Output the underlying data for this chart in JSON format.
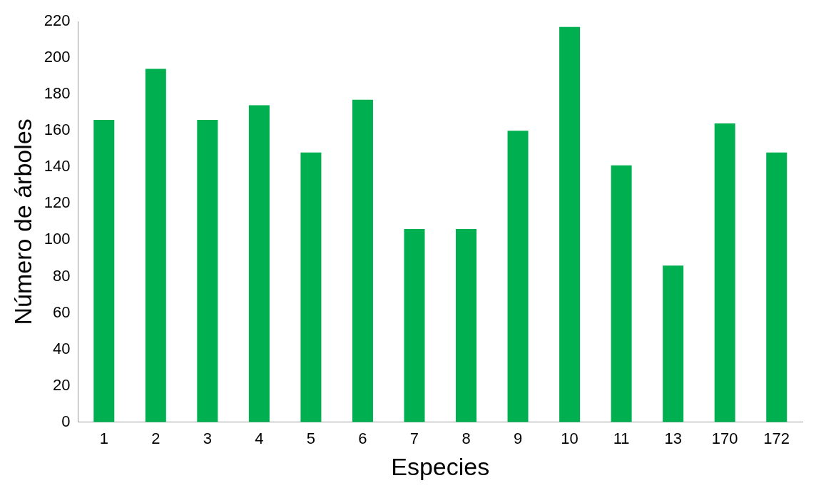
{
  "chart_data": {
    "type": "bar",
    "xlabel": "Especies",
    "ylabel": "Número de árboles",
    "categories": [
      "1",
      "2",
      "3",
      "4",
      "5",
      "6",
      "7",
      "8",
      "9",
      "10",
      "11",
      "13",
      "170",
      "172"
    ],
    "values": [
      166,
      194,
      166,
      174,
      148,
      177,
      106,
      106,
      160,
      217,
      141,
      86,
      164,
      148
    ],
    "color": "#00b050",
    "ylim": [
      0,
      220
    ],
    "yticks": [
      0,
      20,
      40,
      60,
      80,
      100,
      120,
      140,
      160,
      180,
      200,
      220
    ],
    "grid": false,
    "legend": false
  }
}
